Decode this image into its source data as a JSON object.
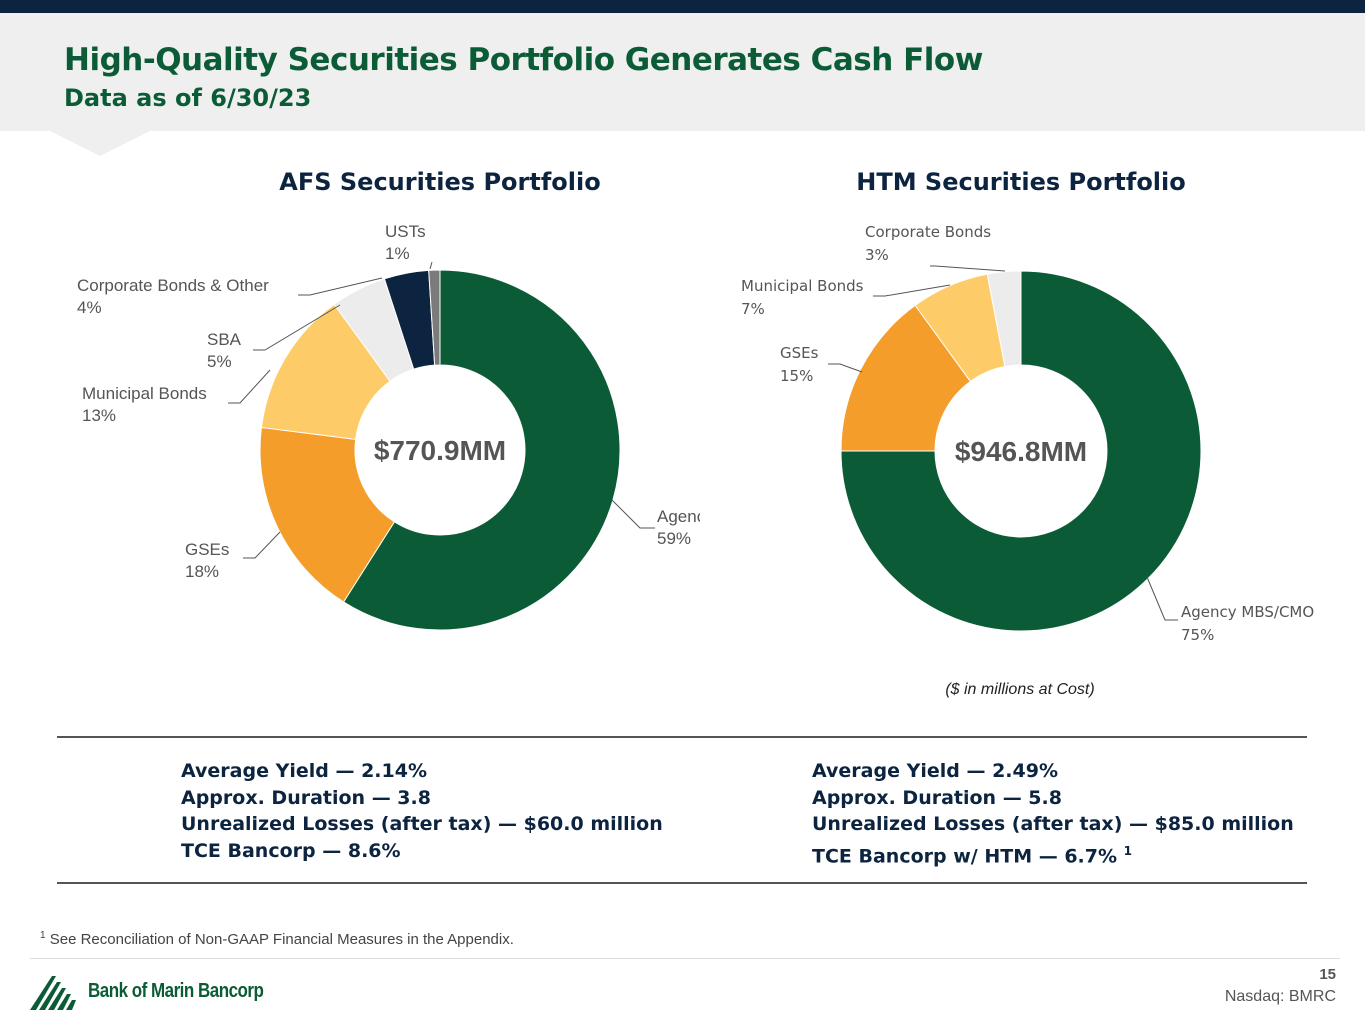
{
  "header": {
    "title": "High-Quality Securities Portfolio Generates Cash Flow",
    "subtitle": "Data as of 6/30/23"
  },
  "colors": {
    "green": "#0b5c36",
    "orange": "#f59d2b",
    "light_orange": "#fdcb68",
    "light_gray": "#ececec",
    "navy": "#0c2440",
    "gray": "#7b7b7b"
  },
  "chart_data": [
    {
      "type": "pie",
      "variant": "donut",
      "title": "AFS Securities Portfolio",
      "center_label": "$770.9MM",
      "start": "top, clockwise",
      "slices": [
        {
          "label": "Agency MBS/CMO",
          "value": 59,
          "value_label": "59%",
          "color": "#0b5c36"
        },
        {
          "label": "GSEs",
          "value": 18,
          "value_label": "18%",
          "color": "#f59d2b"
        },
        {
          "label": "Municipal Bonds",
          "value": 13,
          "value_label": "13%",
          "color": "#fdcb68"
        },
        {
          "label": "SBA",
          "value": 5,
          "value_label": "5%",
          "color": "#ececec"
        },
        {
          "label": "Corporate Bonds & Other",
          "value": 4,
          "value_label": "4%",
          "color": "#0c2440"
        },
        {
          "label": "USTs",
          "value": 1,
          "value_label": "1%",
          "color": "#7b7b7b"
        }
      ]
    },
    {
      "type": "pie",
      "variant": "donut",
      "title": "HTM Securities Portfolio",
      "center_label": "$946.8MM",
      "start": "top, clockwise",
      "slices": [
        {
          "label": "Agency MBS/CMO",
          "value": 75,
          "value_label": "75%",
          "color": "#0b5c36"
        },
        {
          "label": "GSEs",
          "value": 15,
          "value_label": "15%",
          "color": "#f59d2b"
        },
        {
          "label": "Municipal Bonds",
          "value": 7,
          "value_label": "7%",
          "color": "#fdcb68"
        },
        {
          "label": "Corporate Bonds",
          "value": 3,
          "value_label": "3%",
          "color": "#ececec"
        }
      ]
    }
  ],
  "note": "($ in millions at Cost)",
  "afs_stats": {
    "yield": "Average Yield — 2.14%",
    "duration": "Approx. Duration — 3.8",
    "losses": "Unrealized Losses (after tax) — $60.0 million",
    "tce": "TCE Bancorp — 8.6%"
  },
  "htm_stats": {
    "yield": "Average Yield — 2.49%",
    "duration": "Approx. Duration — 5.8",
    "losses": "Unrealized Losses (after tax) — $85.0 million",
    "tce": "TCE Bancorp w/ HTM — 6.7%",
    "tce_sup": "1"
  },
  "footnote": {
    "marker": "1",
    "text": "See Reconciliation of Non-GAAP Financial Measures in the Appendix."
  },
  "footer": {
    "logo_text": "Bank of Marin Bancorp",
    "page": "15",
    "ticker": "Nasdaq: BMRC"
  }
}
